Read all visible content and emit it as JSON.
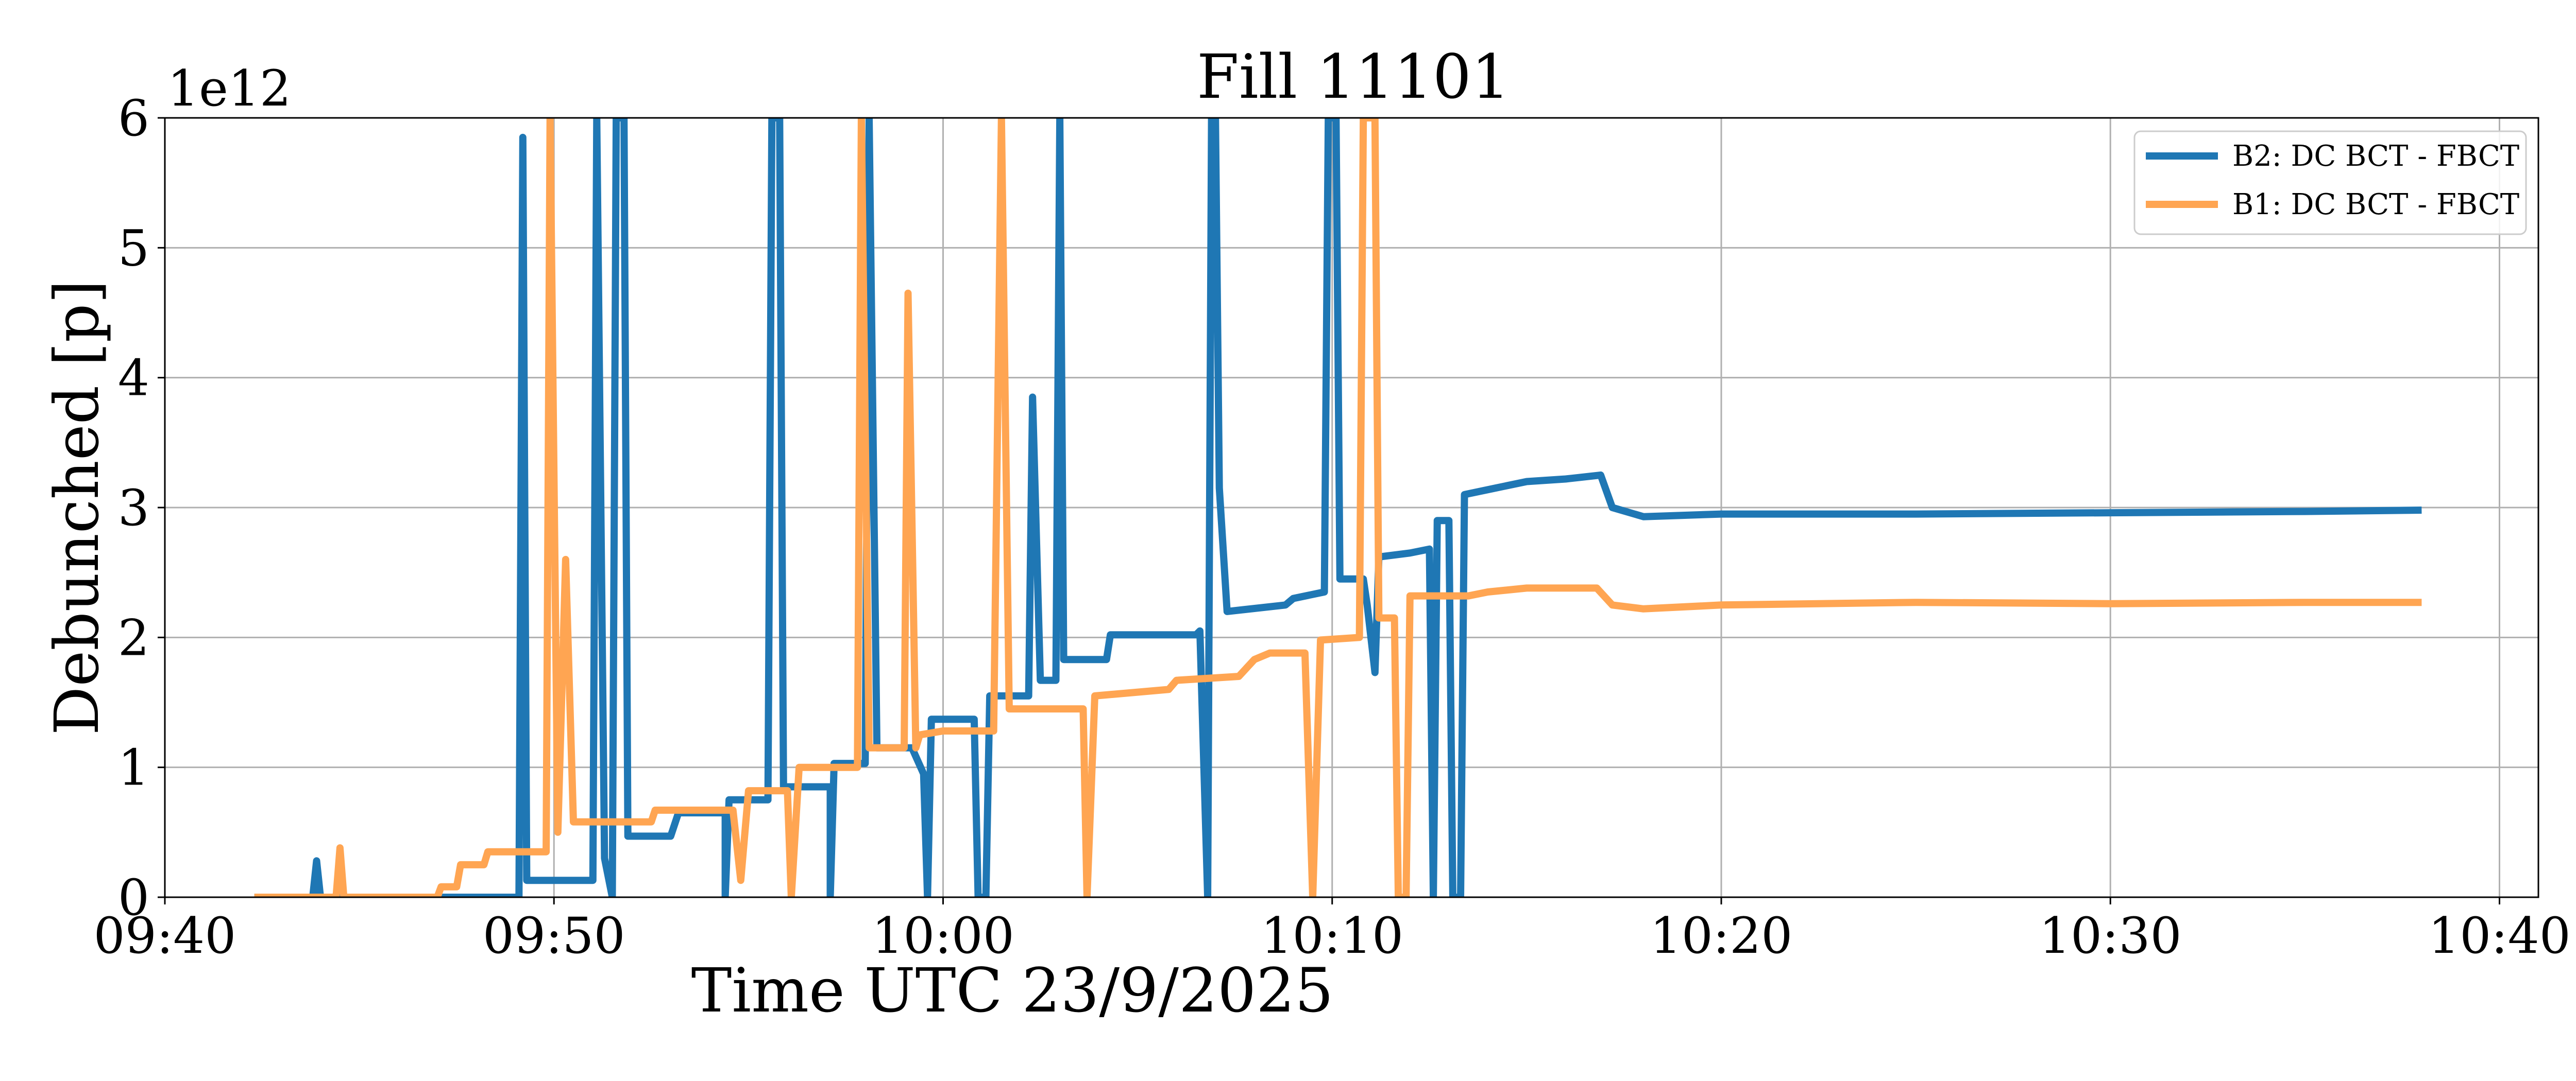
{
  "chart_data": {
    "type": "line",
    "title": "Fill 11101",
    "xlabel": "Time UTC 23/9/2025",
    "ylabel": "Debunched [p]",
    "y_multiplier": "1e12",
    "x_range_minutes": [
      0,
      61
    ],
    "xlim": [
      "09:40",
      "10:41"
    ],
    "ylim": [
      0,
      6
    ],
    "x_ticks": [
      {
        "label": "09:40",
        "minute": 0
      },
      {
        "label": "09:50",
        "minute": 10
      },
      {
        "label": "10:00",
        "minute": 20
      },
      {
        "label": "10:10",
        "minute": 30
      },
      {
        "label": "10:20",
        "minute": 40
      },
      {
        "label": "10:30",
        "minute": 50
      },
      {
        "label": "10:40",
        "minute": 60
      }
    ],
    "y_ticks": [
      0,
      1,
      2,
      3,
      4,
      5,
      6
    ],
    "grid": true,
    "legend_position": "top-right",
    "series": [
      {
        "name": "B2: DC BCT - FBCT",
        "color": "#1f77b4",
        "points": [
          [
            2.3,
            0.0
          ],
          [
            3.8,
            0.0
          ],
          [
            3.9,
            0.28
          ],
          [
            4.0,
            0.0
          ],
          [
            7.0,
            0.0
          ],
          [
            9.1,
            0.0
          ],
          [
            9.2,
            5.85
          ],
          [
            9.3,
            0.13
          ],
          [
            10.8,
            0.13
          ],
          [
            11.0,
            0.13
          ],
          [
            11.1,
            6.0
          ],
          [
            11.3,
            0.3
          ],
          [
            11.5,
            0.0
          ],
          [
            11.6,
            6.0
          ],
          [
            11.8,
            6.0
          ],
          [
            11.9,
            0.47
          ],
          [
            13.0,
            0.47
          ],
          [
            13.2,
            0.65
          ],
          [
            14.4,
            0.65
          ],
          [
            14.4,
            0.0
          ],
          [
            14.5,
            0.75
          ],
          [
            15.5,
            0.75
          ],
          [
            15.6,
            6.0
          ],
          [
            15.8,
            6.0
          ],
          [
            15.9,
            0.85
          ],
          [
            16.7,
            0.85
          ],
          [
            17.1,
            0.85
          ],
          [
            17.1,
            0.0
          ],
          [
            17.2,
            1.03
          ],
          [
            18.0,
            1.03
          ],
          [
            18.1,
            6.0
          ],
          [
            18.3,
            1.15
          ],
          [
            19.2,
            1.15
          ],
          [
            19.5,
            0.95
          ],
          [
            19.6,
            0.0
          ],
          [
            19.7,
            1.37
          ],
          [
            20.8,
            1.37
          ],
          [
            20.9,
            0.0
          ],
          [
            21.1,
            0.0
          ],
          [
            21.2,
            1.55
          ],
          [
            22.2,
            1.55
          ],
          [
            22.3,
            3.85
          ],
          [
            22.5,
            1.67
          ],
          [
            22.9,
            1.67
          ],
          [
            23.0,
            6.0
          ],
          [
            23.1,
            1.83
          ],
          [
            24.2,
            1.83
          ],
          [
            24.3,
            2.02
          ],
          [
            26.5,
            2.02
          ],
          [
            26.6,
            2.05
          ],
          [
            26.8,
            0.0
          ],
          [
            26.9,
            6.0
          ],
          [
            27.0,
            6.0
          ],
          [
            27.1,
            3.15
          ],
          [
            27.3,
            2.2
          ],
          [
            28.8,
            2.25
          ],
          [
            29.0,
            2.3
          ],
          [
            29.8,
            2.35
          ],
          [
            29.9,
            6.0
          ],
          [
            30.1,
            6.0
          ],
          [
            30.2,
            2.45
          ],
          [
            30.8,
            2.45
          ],
          [
            30.9,
            2.25
          ],
          [
            31.1,
            1.73
          ],
          [
            31.2,
            2.62
          ],
          [
            32.0,
            2.65
          ],
          [
            32.5,
            2.68
          ],
          [
            32.6,
            0.0
          ],
          [
            32.7,
            2.9
          ],
          [
            33.0,
            2.9
          ],
          [
            33.1,
            0.0
          ],
          [
            33.3,
            0.0
          ],
          [
            33.4,
            3.1
          ],
          [
            34.2,
            3.15
          ],
          [
            35.0,
            3.2
          ],
          [
            36.0,
            3.22
          ],
          [
            36.9,
            3.25
          ],
          [
            37.2,
            3.0
          ],
          [
            38.0,
            2.93
          ],
          [
            40.0,
            2.95
          ],
          [
            45.0,
            2.95
          ],
          [
            50.0,
            2.96
          ],
          [
            55.0,
            2.97
          ],
          [
            58.0,
            2.98
          ]
        ]
      },
      {
        "name": "B1: DC BCT - FBCT",
        "color": "#ffa552",
        "points": [
          [
            2.3,
            0.0
          ],
          [
            4.4,
            0.0
          ],
          [
            4.5,
            0.38
          ],
          [
            4.6,
            0.0
          ],
          [
            7.0,
            0.0
          ],
          [
            7.1,
            0.08
          ],
          [
            7.5,
            0.08
          ],
          [
            7.6,
            0.25
          ],
          [
            8.2,
            0.25
          ],
          [
            8.3,
            0.35
          ],
          [
            9.8,
            0.35
          ],
          [
            9.9,
            6.0
          ],
          [
            10.1,
            0.5
          ],
          [
            10.3,
            2.6
          ],
          [
            10.5,
            0.58
          ],
          [
            12.5,
            0.58
          ],
          [
            12.6,
            0.67
          ],
          [
            14.2,
            0.67
          ],
          [
            14.4,
            0.67
          ],
          [
            14.6,
            0.67
          ],
          [
            14.8,
            0.13
          ],
          [
            15.0,
            0.82
          ],
          [
            16.0,
            0.82
          ],
          [
            16.1,
            0.0
          ],
          [
            16.3,
            1.0
          ],
          [
            17.8,
            1.0
          ],
          [
            17.9,
            6.0
          ],
          [
            18.1,
            1.15
          ],
          [
            19.0,
            1.15
          ],
          [
            19.1,
            4.65
          ],
          [
            19.3,
            1.15
          ],
          [
            19.4,
            1.25
          ],
          [
            20.0,
            1.28
          ],
          [
            21.3,
            1.28
          ],
          [
            21.5,
            6.0
          ],
          [
            21.7,
            1.45
          ],
          [
            23.2,
            1.45
          ],
          [
            23.6,
            1.45
          ],
          [
            23.7,
            0.0
          ],
          [
            23.9,
            1.55
          ],
          [
            25.8,
            1.6
          ],
          [
            26.0,
            1.67
          ],
          [
            27.6,
            1.7
          ],
          [
            28.0,
            1.83
          ],
          [
            28.4,
            1.88
          ],
          [
            29.3,
            1.88
          ],
          [
            29.5,
            0.0
          ],
          [
            29.7,
            1.98
          ],
          [
            30.7,
            2.0
          ],
          [
            30.8,
            6.0
          ],
          [
            31.1,
            6.0
          ],
          [
            31.2,
            2.15
          ],
          [
            31.6,
            2.15
          ],
          [
            31.7,
            0.0
          ],
          [
            31.9,
            0.0
          ],
          [
            32.0,
            2.32
          ],
          [
            33.5,
            2.32
          ],
          [
            34.0,
            2.35
          ],
          [
            35.0,
            2.38
          ],
          [
            36.0,
            2.38
          ],
          [
            36.8,
            2.38
          ],
          [
            37.2,
            2.25
          ],
          [
            38.0,
            2.22
          ],
          [
            40.0,
            2.25
          ],
          [
            45.0,
            2.27
          ],
          [
            50.0,
            2.26
          ],
          [
            55.0,
            2.27
          ],
          [
            58.0,
            2.27
          ]
        ]
      }
    ]
  }
}
